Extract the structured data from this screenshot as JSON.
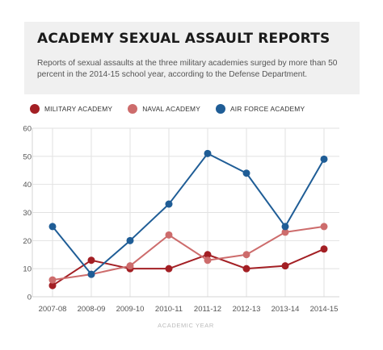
{
  "header": {
    "title": "ACADEMY SEXUAL ASSAULT REPORTS",
    "subtitle": "Reports of sexual assaults at the three military academies surged by more than 50 percent in the 2014-15 school year, according to the Defense Department."
  },
  "chart_data": {
    "type": "line",
    "title": "ACADEMY SEXUAL ASSAULT REPORTS",
    "xlabel": "ACADEMIC YEAR",
    "ylabel": "",
    "categories": [
      "2007-08",
      "2008-09",
      "2009-10",
      "2010-11",
      "2011-12",
      "2012-13",
      "2013-14",
      "2014-15"
    ],
    "ylim": [
      0,
      60
    ],
    "yticks": [
      "0",
      "10",
      "20",
      "30",
      "40",
      "50",
      "60"
    ],
    "grid": true,
    "legend_position": "top-left",
    "series": [
      {
        "name": "MILITARY ACADEMY",
        "color": "#a31f24",
        "values": [
          4,
          13,
          10,
          10,
          15,
          10,
          11,
          17
        ]
      },
      {
        "name": "NAVAL ACADEMY",
        "color": "#cd6c6c",
        "values": [
          6,
          8,
          11,
          22,
          13,
          15,
          23,
          25
        ]
      },
      {
        "name": "AIR FORCE ACADEMY",
        "color": "#1f5d96",
        "values": [
          25,
          8,
          20,
          33,
          51,
          44,
          25,
          49
        ]
      }
    ]
  }
}
